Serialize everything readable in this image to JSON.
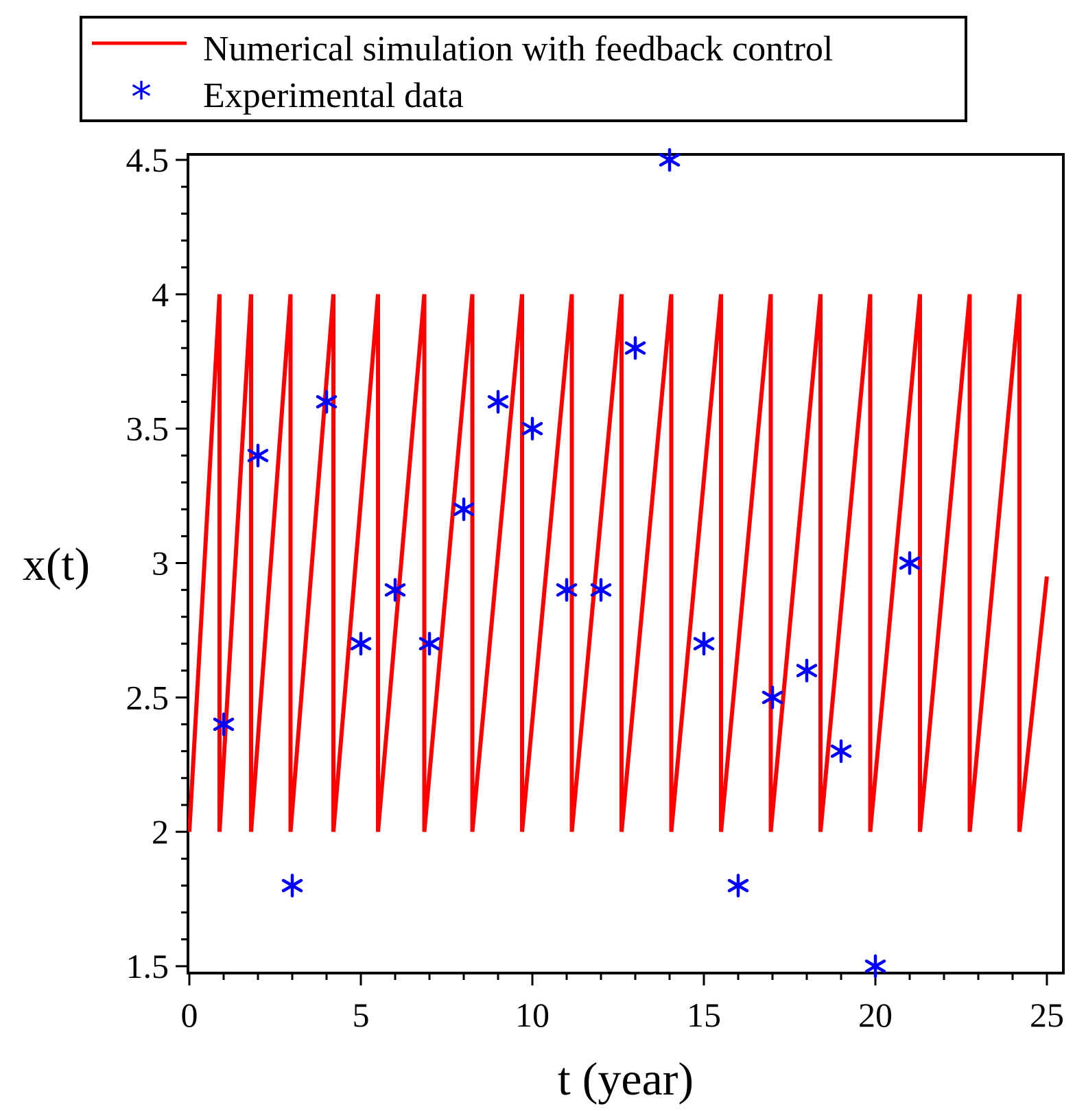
{
  "chart_data": {
    "type": "line",
    "title": "",
    "xlabel": "t (year)",
    "ylabel": "x(t)",
    "xlim": [
      0,
      25
    ],
    "ylim": [
      1.5,
      4.5
    ],
    "xticks": [
      0,
      5,
      10,
      15,
      20,
      25
    ],
    "xtick_labels": [
      "0",
      "5",
      "10",
      "15",
      "20",
      "25"
    ],
    "yticks": [
      1.5,
      2,
      2.5,
      3,
      3.5,
      4,
      4.5
    ],
    "ytick_labels": [
      "1.5",
      "2",
      "2.5",
      "3",
      "3.5",
      "4",
      "4.5"
    ],
    "grid": false,
    "legend": {
      "placement": "top"
    },
    "series": [
      {
        "name": "Numerical simulation with feedback control",
        "kind": "line",
        "color": "#ff0000",
        "x": [
          0,
          0.88,
          0.88,
          1.8,
          1.8,
          2.95,
          2.95,
          4.2,
          4.2,
          5.5,
          5.5,
          6.85,
          6.85,
          8.25,
          8.25,
          9.7,
          9.7,
          11.15,
          11.15,
          12.6,
          12.6,
          14.05,
          14.05,
          15.5,
          15.5,
          16.95,
          16.95,
          18.4,
          18.4,
          19.85,
          19.85,
          21.3,
          21.3,
          22.75,
          22.75,
          24.2,
          24.2,
          25
        ],
        "y": [
          2,
          4,
          2,
          4,
          2,
          4,
          2,
          4,
          2,
          4,
          2,
          4,
          2,
          4,
          2,
          4,
          2,
          4,
          2,
          4,
          2,
          4,
          2,
          4,
          2,
          4,
          2,
          4,
          2,
          4,
          2,
          4,
          2,
          4,
          2,
          4,
          2,
          2.95
        ]
      },
      {
        "name": "Experimental data",
        "kind": "scatter",
        "marker": "*",
        "color": "#0000ff",
        "x": [
          1,
          2,
          3,
          4,
          5,
          6,
          7,
          8,
          9,
          10,
          11,
          12,
          13,
          14,
          15,
          16,
          17,
          18,
          19,
          20,
          21
        ],
        "y": [
          2.4,
          3.4,
          1.8,
          3.6,
          2.7,
          2.9,
          2.7,
          3.2,
          3.6,
          3.5,
          2.9,
          2.9,
          3.8,
          4.5,
          2.7,
          1.8,
          2.5,
          2.6,
          2.3,
          1.5,
          3.0
        ]
      }
    ]
  }
}
